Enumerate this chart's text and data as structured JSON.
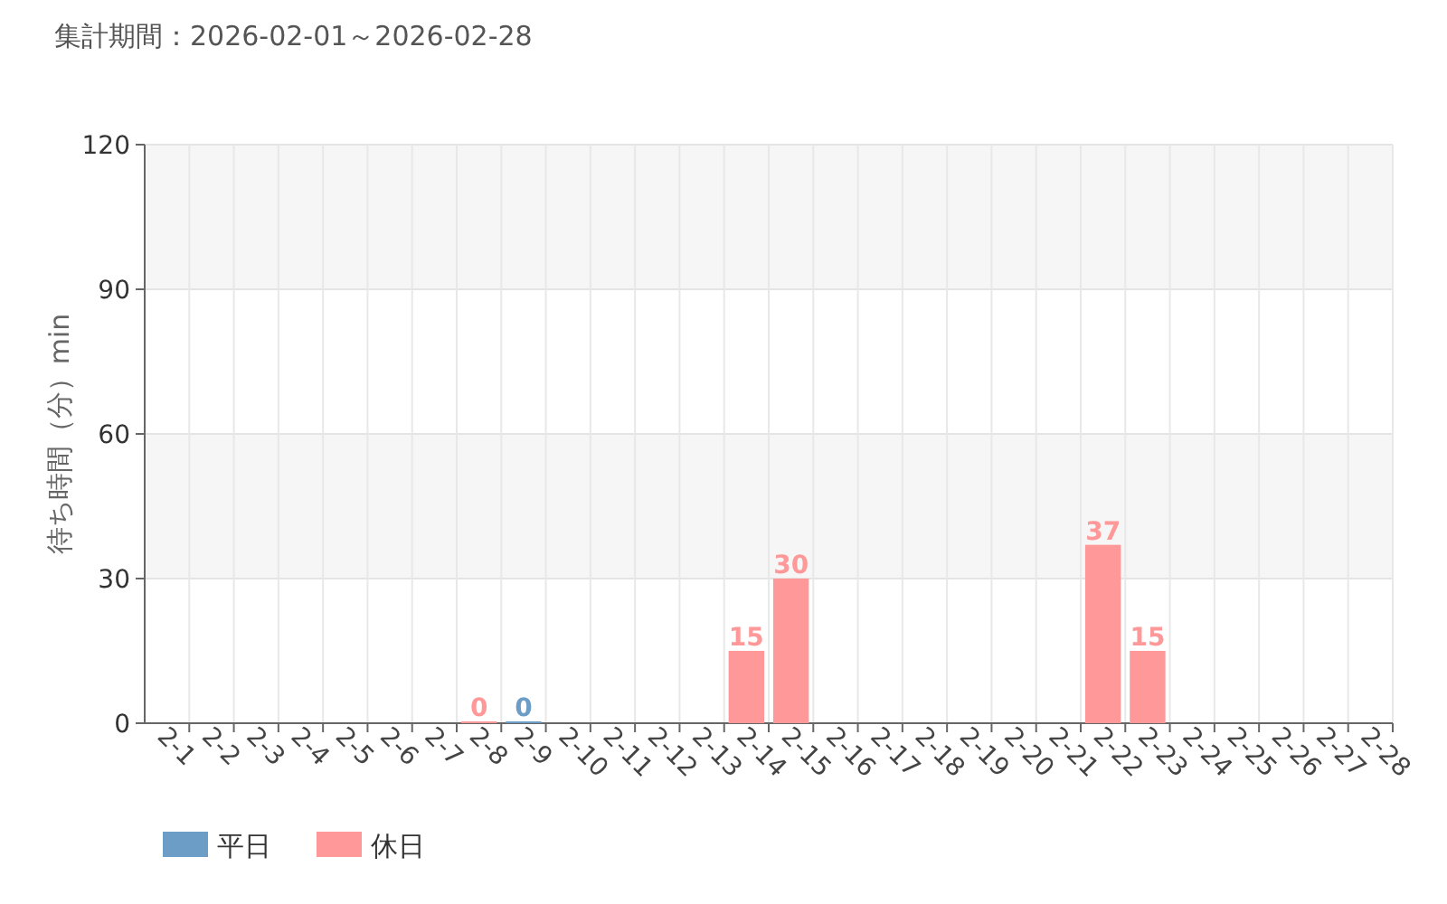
{
  "chart_data": {
    "type": "bar",
    "title": "集計期間：2026-02-01～2026-02-28",
    "ylabel": "待ち時間（分）min",
    "categories": [
      "2-1",
      "2-2",
      "2-3",
      "2-4",
      "2-5",
      "2-6",
      "2-7",
      "2-8",
      "2-9",
      "2-10",
      "2-11",
      "2-12",
      "2-13",
      "2-14",
      "2-15",
      "2-16",
      "2-17",
      "2-18",
      "2-19",
      "2-20",
      "2-21",
      "2-22",
      "2-23",
      "2-24",
      "2-25",
      "2-26",
      "2-27",
      "2-28"
    ],
    "series": [
      {
        "name": "平日",
        "color": "#6b9dc6",
        "values": [
          null,
          null,
          null,
          null,
          null,
          null,
          null,
          null,
          0,
          null,
          null,
          null,
          null,
          null,
          null,
          null,
          null,
          null,
          null,
          null,
          null,
          null,
          null,
          null,
          null,
          null,
          null,
          null
        ]
      },
      {
        "name": "休日",
        "color": "#ff9999",
        "values": [
          null,
          null,
          null,
          null,
          null,
          null,
          null,
          0,
          null,
          null,
          null,
          null,
          null,
          15,
          30,
          null,
          null,
          null,
          null,
          null,
          null,
          37,
          15,
          null,
          null,
          null,
          null,
          null
        ]
      }
    ],
    "ylim": [
      0,
      120
    ],
    "yticks": [
      0,
      30,
      60,
      90,
      120
    ],
    "grid": true,
    "legend": "bottom left",
    "data_labels": true
  }
}
